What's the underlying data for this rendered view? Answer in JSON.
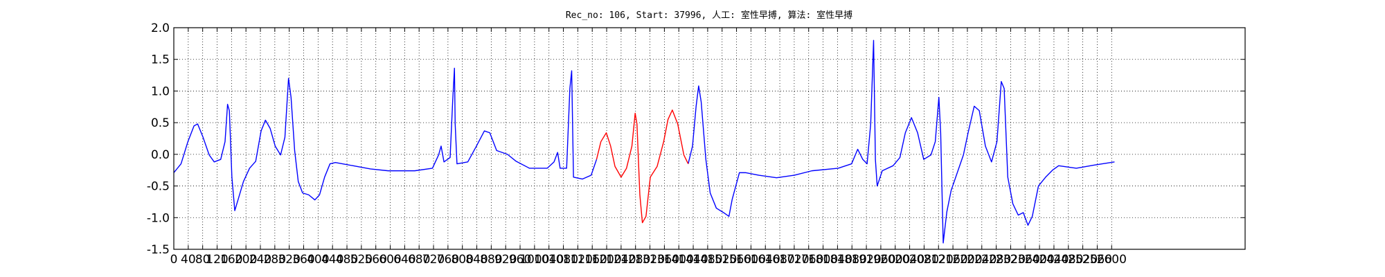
{
  "chart_data": {
    "type": "line",
    "title": "Rec_no: 106, Start: 37996, 人工: 室性早搏, 算法: 室性早搏",
    "x": [
      0,
      20,
      39,
      56,
      66,
      81,
      98,
      112,
      130,
      142,
      149,
      154,
      161,
      169,
      179,
      193,
      210,
      227,
      242,
      254,
      267,
      281,
      296,
      308,
      318,
      325,
      335,
      345,
      357,
      374,
      391,
      404,
      418,
      433,
      448,
      497,
      545,
      594,
      668,
      717,
      734,
      741,
      749,
      766,
      773,
      778,
      780,
      785,
      815,
      839,
      861,
      876,
      895,
      925,
      949,
      986,
      1035,
      1054,
      1064,
      1071,
      1089,
      1098,
      1103,
      1108,
      1133,
      1157,
      1172,
      1184,
      1199,
      1211,
      1223,
      1240,
      1255,
      1270,
      1279,
      1284,
      1292,
      1299,
      1309,
      1321,
      1340,
      1358,
      1370,
      1382,
      1397,
      1414,
      1426,
      1438,
      1448,
      1455,
      1462,
      1475,
      1487,
      1504,
      1524,
      1539,
      1548,
      1568,
      1585,
      1622,
      1671,
      1720,
      1769,
      1842,
      1879,
      1896,
      1910,
      1922,
      1932,
      1940,
      1945,
      1950,
      1964,
      1994,
      2013,
      2028,
      2045,
      2062,
      2079,
      2099,
      2111,
      2121,
      2126,
      2133,
      2143,
      2155,
      2172,
      2189,
      2202,
      2219,
      2233,
      2250,
      2267,
      2282,
      2294,
      2302,
      2312,
      2326,
      2341,
      2355,
      2368,
      2380,
      2397,
      2417,
      2436,
      2453,
      2502,
      2551,
      2608
    ],
    "series": [
      {
        "color": "#0000ff",
        "values": [
          -0.29,
          -0.15,
          0.2,
          0.45,
          0.48,
          0.27,
          -0.01,
          -0.12,
          -0.08,
          0.2,
          0.79,
          0.69,
          -0.36,
          -0.89,
          -0.7,
          -0.43,
          -0.22,
          -0.11,
          0.37,
          0.54,
          0.41,
          0.13,
          -0.01,
          0.27,
          1.2,
          0.9,
          0.06,
          -0.43,
          -0.61,
          -0.64,
          -0.72,
          -0.64,
          -0.36,
          -0.15,
          -0.13,
          -0.18,
          -0.23,
          -0.26,
          -0.26,
          -0.22,
          -0.01,
          0.13,
          -0.12,
          -0.05,
          0.83,
          1.36,
          0.48,
          -0.15,
          -0.12,
          0.13,
          0.37,
          0.34,
          0.06,
          0.0,
          -0.11,
          -0.22,
          -0.22,
          -0.12,
          0.03,
          -0.22,
          -0.22,
          1.04,
          1.32,
          -0.36,
          -0.39,
          -0.33,
          -0.08,
          null,
          null,
          null,
          null,
          null,
          null,
          null,
          null,
          null,
          null,
          null,
          null,
          null,
          null,
          null,
          null,
          null,
          null,
          null,
          -0.15,
          0.13,
          0.76,
          1.08,
          0.83,
          -0.08,
          -0.61,
          -0.85,
          -0.92,
          -0.98,
          -0.71,
          -0.29,
          -0.29,
          -0.33,
          -0.37,
          -0.33,
          -0.26,
          -0.22,
          -0.15,
          0.08,
          -0.08,
          -0.15,
          0.48,
          1.8,
          -0.08,
          -0.5,
          -0.26,
          -0.18,
          -0.05,
          0.34,
          0.58,
          0.34,
          -0.08,
          -0.01,
          0.2,
          0.9,
          0.34,
          -1.4,
          -0.91,
          -0.57,
          -0.29,
          -0.01,
          0.34,
          0.76,
          0.69,
          0.13,
          -0.12,
          0.2,
          1.15,
          1.04,
          -0.36,
          -0.78,
          -0.96,
          -0.92,
          -1.12,
          -0.98,
          -0.5,
          -0.36,
          -0.25,
          -0.18,
          -0.22,
          -0.17,
          -0.12
        ]
      },
      {
        "color": "#ff0000",
        "values": [
          null,
          null,
          null,
          null,
          null,
          null,
          null,
          null,
          null,
          null,
          null,
          null,
          null,
          null,
          null,
          null,
          null,
          null,
          null,
          null,
          null,
          null,
          null,
          null,
          null,
          null,
          null,
          null,
          null,
          null,
          null,
          null,
          null,
          null,
          null,
          null,
          null,
          null,
          null,
          null,
          null,
          null,
          null,
          null,
          null,
          null,
          null,
          null,
          null,
          null,
          null,
          null,
          null,
          null,
          null,
          null,
          null,
          null,
          null,
          null,
          null,
          null,
          null,
          null,
          null,
          null,
          -0.08,
          0.2,
          0.34,
          0.13,
          -0.19,
          -0.36,
          -0.22,
          0.13,
          0.65,
          0.48,
          -0.64,
          -1.08,
          -0.98,
          -0.36,
          -0.19,
          0.2,
          0.55,
          0.7,
          0.48,
          -0.01,
          -0.15,
          null,
          null,
          null,
          null,
          null,
          null,
          null,
          null,
          null,
          null,
          null,
          null,
          null,
          null,
          null,
          null,
          null,
          null,
          null,
          null,
          null,
          null,
          null,
          null,
          null,
          null,
          null,
          null,
          null,
          null,
          null,
          null,
          null,
          null,
          null,
          null,
          null,
          null,
          null,
          null,
          null,
          null,
          null,
          null,
          null,
          null,
          null,
          null,
          null,
          null,
          null,
          null,
          null,
          null,
          null,
          null,
          null,
          null,
          null,
          null,
          null,
          null
        ]
      }
    ],
    "xlim": [
      0,
      2970
    ],
    "xticks": [
      0,
      40,
      80,
      120,
      160,
      200,
      240,
      280,
      320,
      360,
      400,
      440,
      480,
      520,
      560,
      600,
      640,
      680,
      720,
      760,
      800,
      840,
      880,
      920,
      960,
      1000,
      1040,
      1080,
      1120,
      1160,
      1200,
      1240,
      1280,
      1320,
      1360,
      1400,
      1440,
      1480,
      1520,
      1560,
      1600,
      1640,
      1680,
      1720,
      1760,
      1800,
      1840,
      1880,
      1920,
      1960,
      2000,
      2040,
      2080,
      2120,
      2160,
      2200,
      2240,
      2280,
      2320,
      2360,
      2400,
      2440,
      2480,
      2520,
      2560,
      2600
    ],
    "ylim": [
      -1.5,
      2.0
    ],
    "yticks": [
      -1.5,
      {
        "value": -1.0,
        "label": "-1.0"
      },
      -0.5,
      {
        "value": 0.0,
        "label": "0.0"
      },
      0.5,
      {
        "value": 1.0,
        "label": "1.0"
      },
      1.5,
      {
        "value": 2.0,
        "label": "2.0"
      }
    ],
    "grid": true
  }
}
